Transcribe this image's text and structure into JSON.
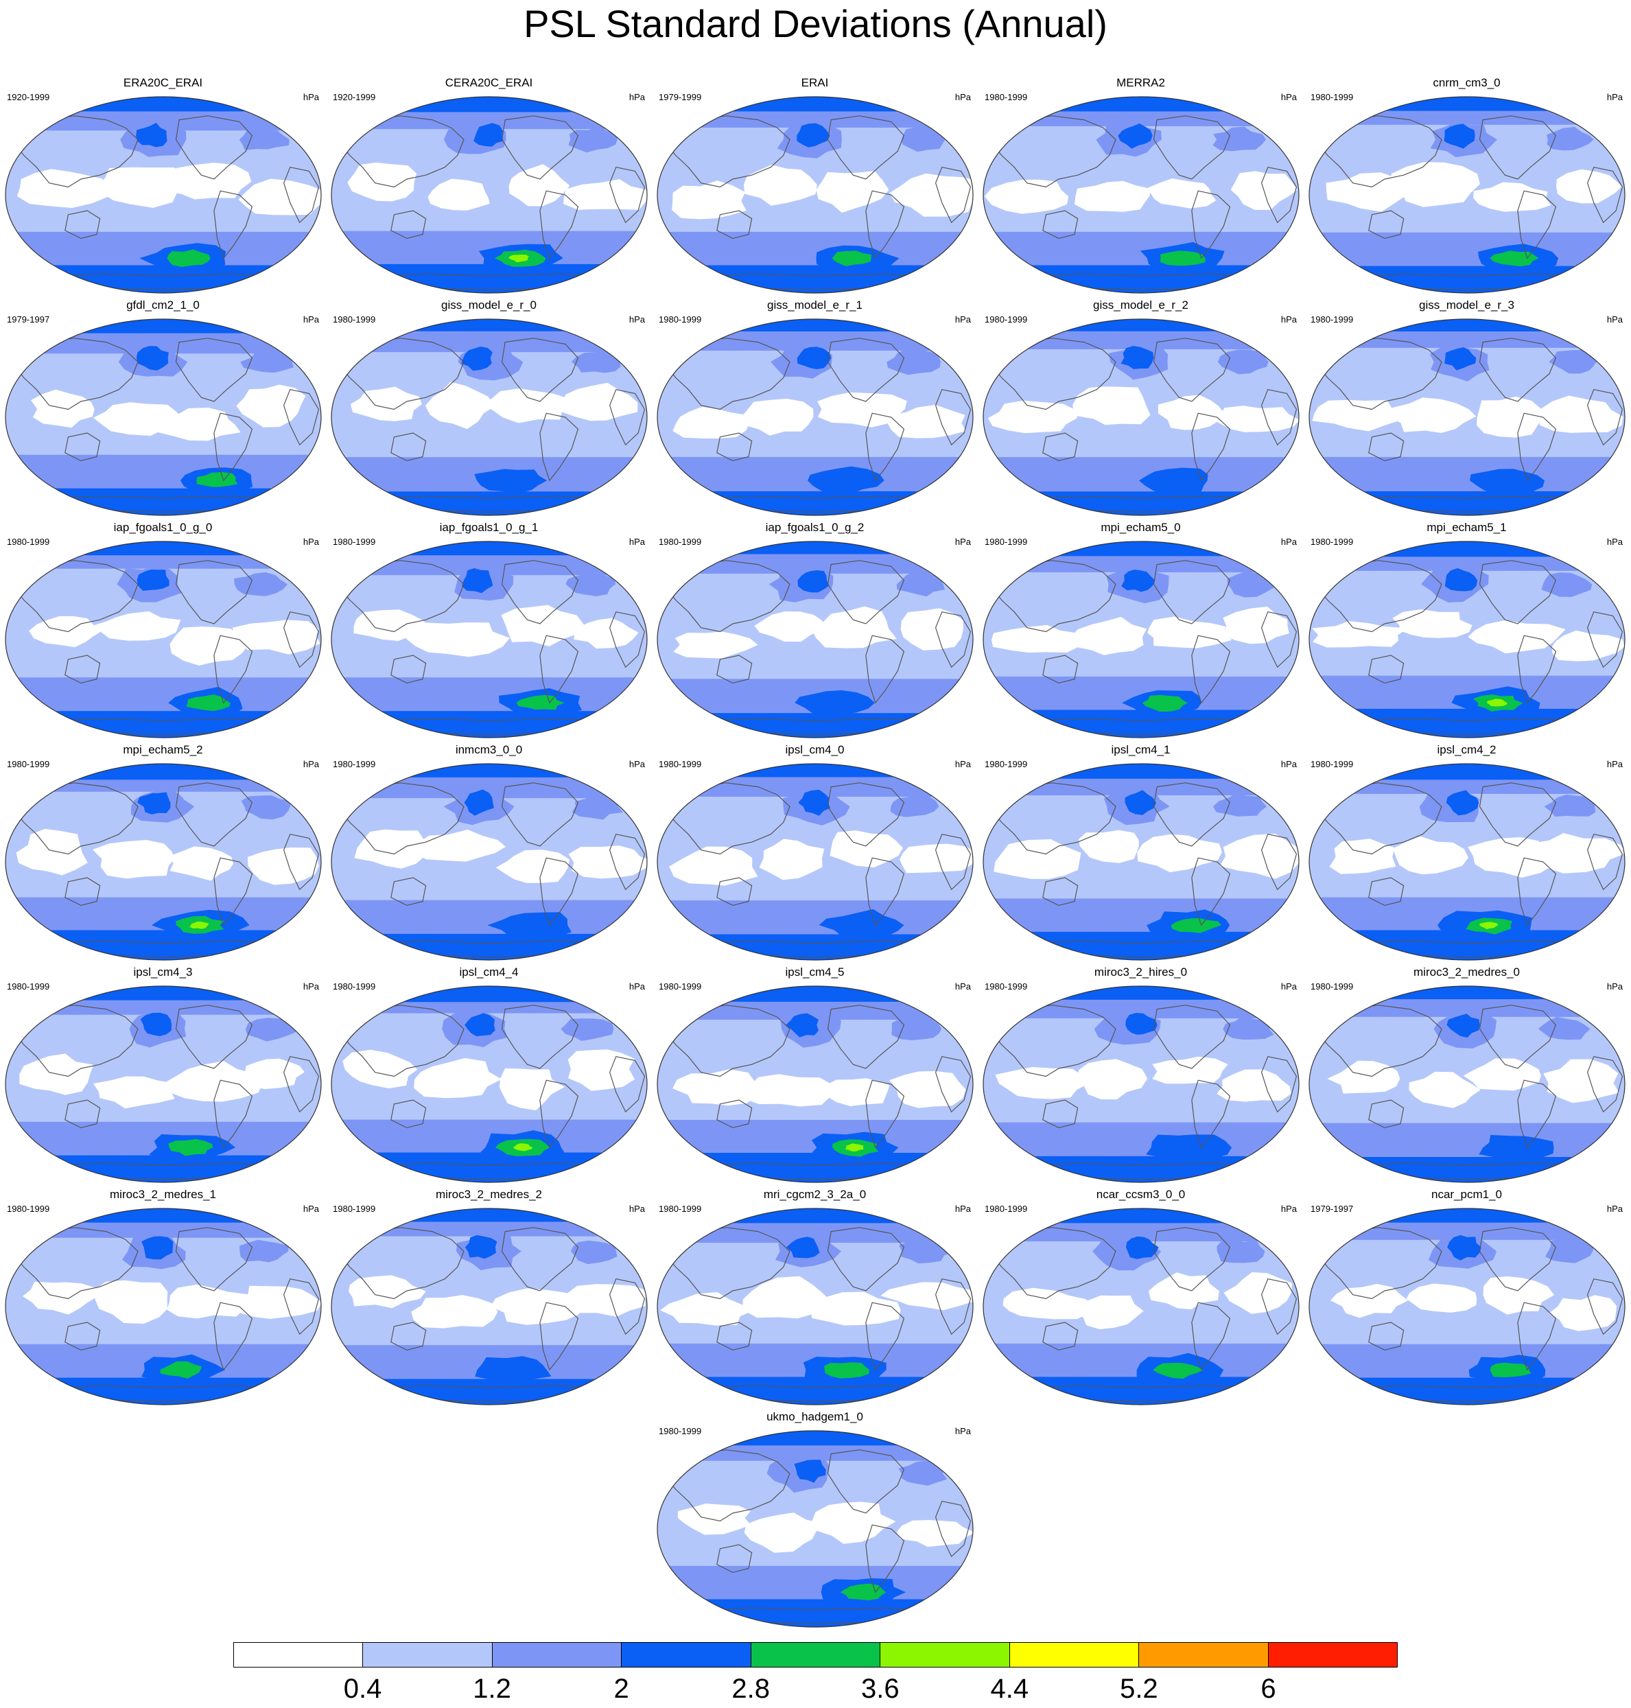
{
  "title": "PSL Standard Deviations (Annual)",
  "units": "hPa",
  "colorbar": {
    "levels": [
      "0.4",
      "1.2",
      "2",
      "2.8",
      "3.6",
      "4.4",
      "5.2",
      "6"
    ],
    "colors": [
      "#ffffff",
      "#b4c7fa",
      "#7d96f5",
      "#0a5ff5",
      "#08c24a",
      "#8cf500",
      "#ffff00",
      "#ff9b00",
      "#ff1e00"
    ]
  },
  "panels": [
    {
      "name": "ERA20C_ERAI",
      "years": "1920-1999",
      "seed": 1,
      "strength": 0.55
    },
    {
      "name": "CERA20C_ERAI",
      "years": "1920-1999",
      "seed": 2,
      "strength": 0.62
    },
    {
      "name": "ERAI",
      "years": "1979-1999",
      "seed": 3,
      "strength": 0.55
    },
    {
      "name": "MERRA2",
      "years": "1980-1999",
      "seed": 4,
      "strength": 0.55
    },
    {
      "name": "cnrm_cm3_0",
      "years": "1980-1999",
      "seed": 5,
      "strength": 0.5
    },
    {
      "name": "gfdl_cm2_1_0",
      "years": "1979-1997",
      "seed": 6,
      "strength": 0.5
    },
    {
      "name": "giss_model_e_r_0",
      "years": "1980-1999",
      "seed": 7,
      "strength": 0.3
    },
    {
      "name": "giss_model_e_r_1",
      "years": "1980-1999",
      "seed": 8,
      "strength": 0.32
    },
    {
      "name": "giss_model_e_r_2",
      "years": "1980-1999",
      "seed": 9,
      "strength": 0.3
    },
    {
      "name": "giss_model_e_r_3",
      "years": "1980-1999",
      "seed": 10,
      "strength": 0.32
    },
    {
      "name": "iap_fgoals1_0_g_0",
      "years": "1980-1999",
      "seed": 11,
      "strength": 0.48
    },
    {
      "name": "iap_fgoals1_0_g_1",
      "years": "1980-1999",
      "seed": 12,
      "strength": 0.48
    },
    {
      "name": "iap_fgoals1_0_g_2",
      "years": "1980-1999",
      "seed": 13,
      "strength": 0.35
    },
    {
      "name": "mpi_echam5_0",
      "years": "1980-1999",
      "seed": 14,
      "strength": 0.55
    },
    {
      "name": "mpi_echam5_1",
      "years": "1980-1999",
      "seed": 15,
      "strength": 0.62
    },
    {
      "name": "mpi_echam5_2",
      "years": "1980-1999",
      "seed": 16,
      "strength": 0.68
    },
    {
      "name": "inmcm3_0_0",
      "years": "1980-1999",
      "seed": 17,
      "strength": 0.45
    },
    {
      "name": "ipsl_cm4_0",
      "years": "1980-1999",
      "seed": 18,
      "strength": 0.42
    },
    {
      "name": "ipsl_cm4_1",
      "years": "1980-1999",
      "seed": 19,
      "strength": 0.58
    },
    {
      "name": "ipsl_cm4_2",
      "years": "1980-1999",
      "seed": 20,
      "strength": 0.68
    },
    {
      "name": "ipsl_cm4_3",
      "years": "1980-1999",
      "seed": 21,
      "strength": 0.5
    },
    {
      "name": "ipsl_cm4_4",
      "years": "1980-1999",
      "seed": 22,
      "strength": 0.68
    },
    {
      "name": "ipsl_cm4_5",
      "years": "1980-1999",
      "seed": 23,
      "strength": 0.66
    },
    {
      "name": "miroc3_2_hires_0",
      "years": "1980-1999",
      "seed": 24,
      "strength": 0.45
    },
    {
      "name": "miroc3_2_medres_0",
      "years": "1980-1999",
      "seed": 25,
      "strength": 0.4
    },
    {
      "name": "miroc3_2_medres_1",
      "years": "1980-1999",
      "seed": 26,
      "strength": 0.5
    },
    {
      "name": "miroc3_2_medres_2",
      "years": "1980-1999",
      "seed": 27,
      "strength": 0.42
    },
    {
      "name": "mri_cgcm2_3_2a_0",
      "years": "1980-1999",
      "seed": 28,
      "strength": 0.55
    },
    {
      "name": "ncar_ccsm3_0_0",
      "years": "1980-1999",
      "seed": 29,
      "strength": 0.55
    },
    {
      "name": "ncar_pcm1_0",
      "years": "1979-1997",
      "seed": 30,
      "strength": 0.5
    },
    {
      "name": "ukmo_hadgem1_0",
      "years": "1980-1999",
      "seed": 31,
      "strength": 0.55
    }
  ]
}
